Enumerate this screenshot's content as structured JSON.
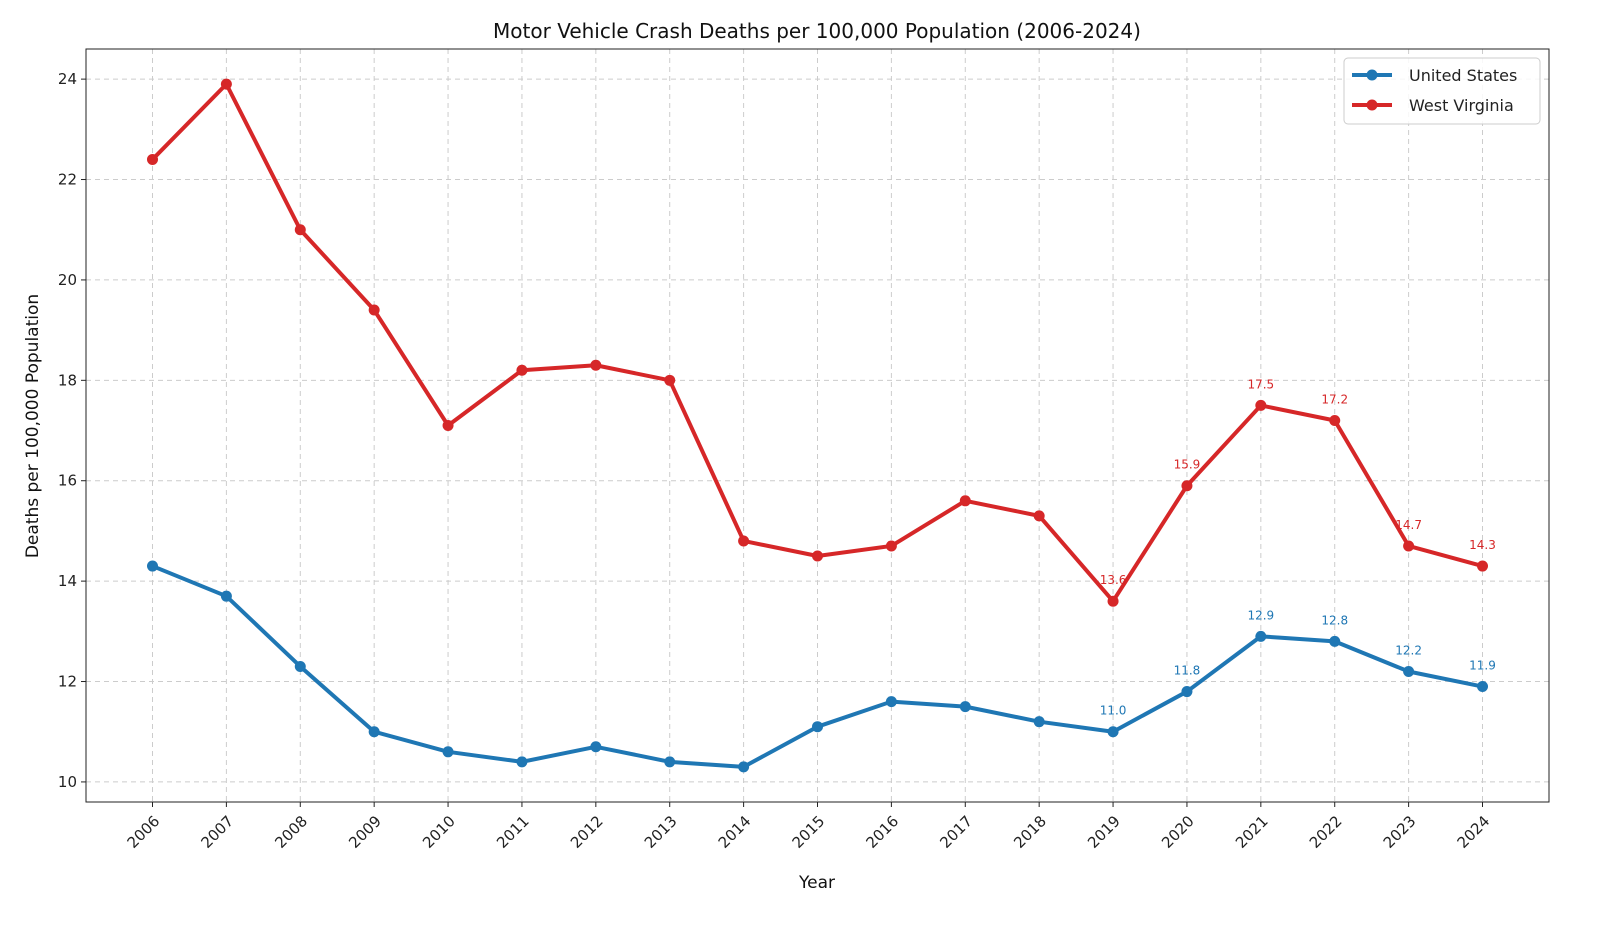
{
  "chart_data": {
    "type": "line",
    "title": "Motor Vehicle Crash Deaths per 100,000 Population (2006-2024)",
    "xlabel": "Year",
    "ylabel": "Deaths per 100,000 Population",
    "x": [
      2006,
      2007,
      2008,
      2009,
      2010,
      2011,
      2012,
      2013,
      2014,
      2015,
      2016,
      2017,
      2018,
      2019,
      2020,
      2021,
      2022,
      2023,
      2024
    ],
    "xlim": [
      2005.1,
      2024.9
    ],
    "ylim": [
      9.6,
      24.6
    ],
    "yticks": [
      10,
      12,
      14,
      16,
      18,
      20,
      22,
      24
    ],
    "grid": true,
    "legend_position": "top-right",
    "series": [
      {
        "name": "United States",
        "color": "#1f77b4",
        "values": [
          14.3,
          13.7,
          12.3,
          11.0,
          10.6,
          10.4,
          10.7,
          10.4,
          10.3,
          11.1,
          11.6,
          11.5,
          11.2,
          11.0,
          11.8,
          12.9,
          12.8,
          12.2,
          11.9
        ],
        "annotated_from": 2019
      },
      {
        "name": "West Virginia",
        "color": "#d62728",
        "values": [
          22.4,
          23.9,
          21.0,
          19.4,
          17.1,
          18.2,
          18.3,
          18.0,
          14.8,
          14.5,
          14.7,
          15.6,
          15.3,
          13.6,
          15.9,
          17.5,
          17.2,
          14.7,
          14.3
        ],
        "annotated_from": 2019
      }
    ]
  }
}
